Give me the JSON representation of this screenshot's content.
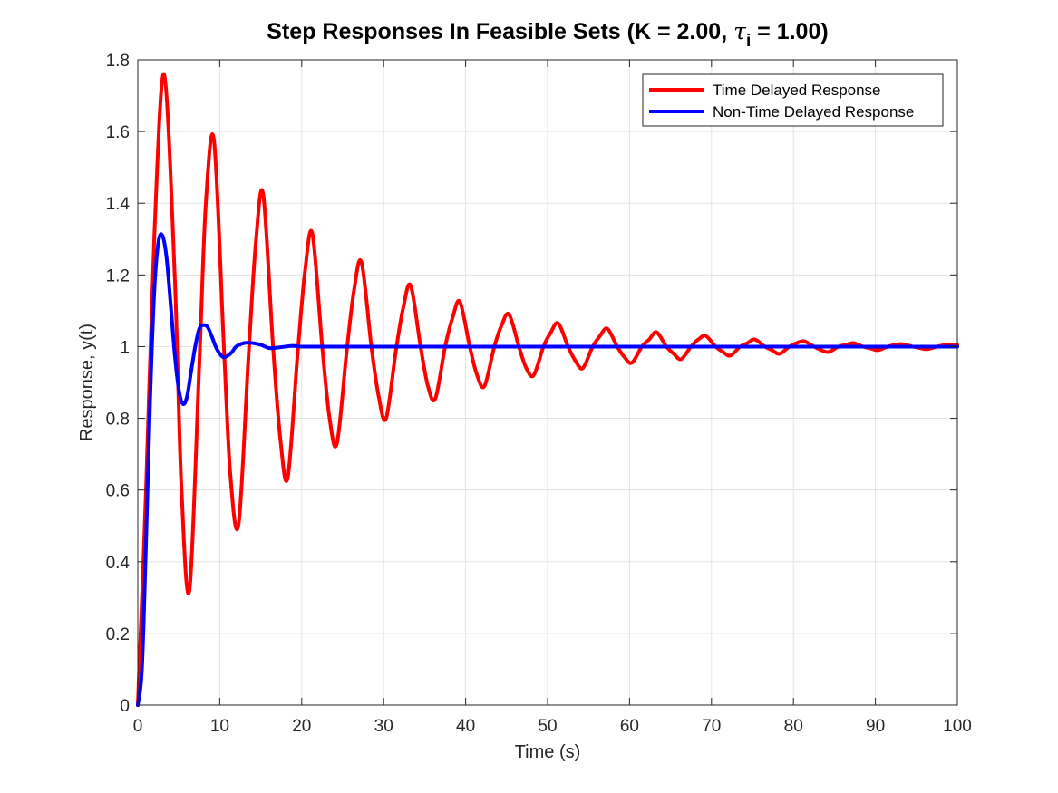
{
  "chart_data": {
    "type": "line",
    "title": {
      "prefix": "Step Responses In Feasible Sets (K = 2.00, ",
      "symbol": "τ",
      "subscript": "i",
      "suffix": " = 1.00)"
    },
    "xlabel": "Time (s)",
    "ylabel": "Response, y(t)",
    "xlim": [
      0,
      100
    ],
    "ylim": [
      0,
      1.8
    ],
    "xticks": [
      0,
      10,
      20,
      30,
      40,
      50,
      60,
      70,
      80,
      90,
      100
    ],
    "yticks": [
      0,
      0.2,
      0.4,
      0.6,
      0.8,
      1,
      1.2,
      1.4,
      1.6,
      1.8
    ],
    "xtick_labels": [
      "0",
      "10",
      "20",
      "30",
      "40",
      "50",
      "60",
      "70",
      "80",
      "90",
      "100"
    ],
    "ytick_labels": [
      "0",
      "0.2",
      "0.4",
      "0.6",
      "0.8",
      "1",
      "1.2",
      "1.4",
      "1.6",
      "1.8"
    ],
    "grid": true,
    "legend_position": "top-right",
    "series": [
      {
        "name": "Time Delayed Response",
        "color": "#ff0000",
        "x": [
          0,
          1,
          2,
          3.2,
          4.5,
          5.3,
          6.3,
          7.5,
          8.3,
          9.3,
          10.5,
          11.3,
          12.3,
          13.5,
          14.4,
          15.3,
          16.5,
          17.4,
          18.3,
          19.5,
          20.4,
          21.3,
          22.5,
          23.4,
          24.3,
          25.5,
          26.4,
          27.3,
          28.5,
          29.4,
          30.3,
          31.5,
          32.4,
          33.3,
          34.5,
          35.4,
          36.3,
          37.5,
          38.4,
          39.3,
          40.5,
          41.4,
          42.3,
          43.5,
          44.4,
          45.3,
          46.5,
          47.4,
          48.3,
          49.5,
          50.4,
          51.3,
          52.5,
          53.4,
          54.3,
          55.5,
          56.4,
          57.3,
          58.5,
          59.4,
          60.3,
          61.5,
          62.4,
          63.3,
          64.5,
          65.4,
          66.3,
          67.5,
          68.4,
          69.3,
          70.5,
          71.4,
          72.3,
          73.5,
          74.4,
          75.3,
          76.5,
          77.4,
          78.3,
          79.5,
          80.4,
          81.3,
          82.5,
          83.4,
          84.3,
          85.5,
          86.4,
          87.3,
          88.5,
          89.4,
          90.3,
          91.5,
          92.4,
          93.3,
          94.5,
          95.4,
          96.3,
          97.5,
          98.4,
          99.3,
          100
        ],
        "y": [
          0,
          0.6,
          1.3,
          1.76,
          1.2,
          0.62,
          0.32,
          0.95,
          1.4,
          1.575,
          1.0,
          0.64,
          0.505,
          0.97,
          1.29,
          1.425,
          1.0,
          0.74,
          0.635,
          0.98,
          1.21,
          1.315,
          1.0,
          0.8,
          0.73,
          0.99,
          1.16,
          1.235,
          1.0,
          0.86,
          0.8,
          0.99,
          1.11,
          1.17,
          1.0,
          0.89,
          0.855,
          1.0,
          1.08,
          1.125,
          1.0,
          0.92,
          0.89,
          1.0,
          1.06,
          1.09,
          1.0,
          0.94,
          0.92,
          1.0,
          1.04,
          1.065,
          1.0,
          0.96,
          0.94,
          1.0,
          1.03,
          1.05,
          1.0,
          0.97,
          0.955,
          1.0,
          1.02,
          1.04,
          1.0,
          0.98,
          0.965,
          1.0,
          1.02,
          1.03,
          1.0,
          0.985,
          0.975,
          1.0,
          1.01,
          1.02,
          1.0,
          0.99,
          0.98,
          1.0,
          1.01,
          1.015,
          1.0,
          0.99,
          0.985,
          1.0,
          1.005,
          1.01,
          1.0,
          0.995,
          0.99,
          1.0,
          1.005,
          1.007,
          1.0,
          0.996,
          0.993,
          1.0,
          1.004,
          1.006,
          1.004
        ]
      },
      {
        "name": "Non-Time Delayed Response",
        "color": "#0000ff",
        "x": [
          0,
          0.5,
          1,
          1.5,
          2,
          2.5,
          3,
          3.5,
          4,
          4.5,
          5,
          5.5,
          6,
          6.5,
          7,
          7.5,
          8,
          8.5,
          9,
          9.5,
          10,
          10.5,
          11,
          11.5,
          12,
          13,
          14,
          15,
          16,
          17,
          18,
          19,
          20,
          25,
          30,
          40,
          50,
          60,
          70,
          80,
          90,
          100
        ],
        "y": [
          0,
          0.1,
          0.45,
          0.85,
          1.15,
          1.29,
          1.31,
          1.25,
          1.12,
          0.98,
          0.88,
          0.84,
          0.86,
          0.93,
          1.0,
          1.05,
          1.06,
          1.055,
          1.03,
          1.0,
          0.98,
          0.97,
          0.975,
          0.985,
          1.0,
          1.01,
          1.01,
          1.005,
          0.996,
          0.997,
          1.0,
          1.002,
          1.0,
          1.0,
          1.0,
          1.0,
          1.0,
          1.0,
          1.0,
          1.0,
          1.0,
          1.0
        ]
      }
    ]
  }
}
